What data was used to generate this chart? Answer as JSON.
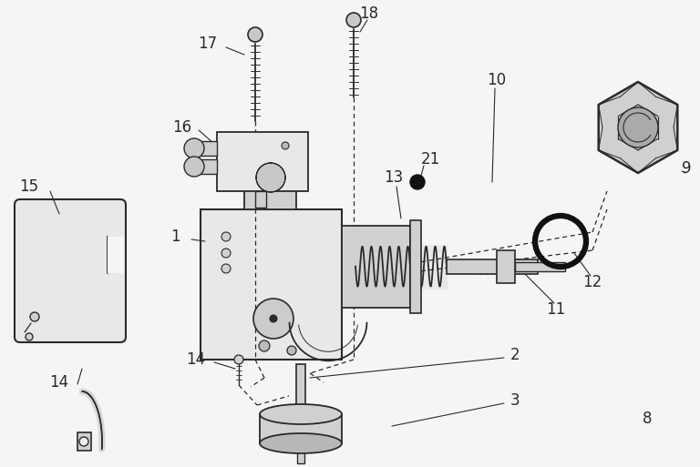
{
  "bg_color": "#f5f5f5",
  "line_color": "#2a2a2a",
  "face_light": "#e8e8e8",
  "face_mid": "#d0d0d0",
  "face_dark": "#b8b8b8",
  "label_fontsize": 12,
  "dpi": 100,
  "figsize": [
    7.68,
    5.13
  ],
  "xlim": [
    0,
    768
  ],
  "ylim": [
    0,
    513
  ]
}
